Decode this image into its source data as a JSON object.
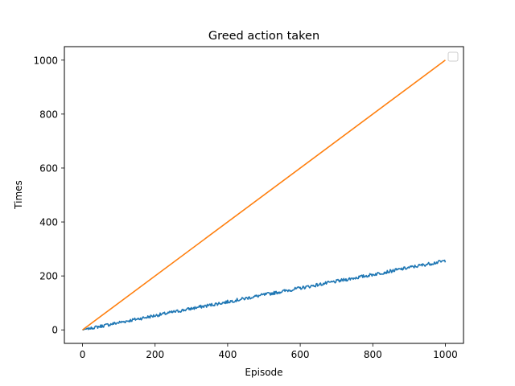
{
  "chart_data": {
    "type": "line",
    "title": "Greed action taken",
    "xlabel": "Episode",
    "ylabel": "Times",
    "xlim": [
      -50,
      1050
    ],
    "ylim": [
      -50,
      1050
    ],
    "xticks": [
      0,
      200,
      400,
      600,
      800,
      1000
    ],
    "yticks": [
      0,
      200,
      400,
      600,
      800,
      1000
    ],
    "grid": false,
    "legend": {
      "placement": "top-right",
      "entries": []
    },
    "series": [
      {
        "color": "#1f77b4",
        "style": "noisy",
        "x": [
          0,
          100,
          200,
          300,
          400,
          500,
          600,
          700,
          800,
          900,
          1000
        ],
        "values": [
          0,
          27,
          53,
          79,
          104,
          130,
          155,
          180,
          205,
          231,
          256
        ]
      },
      {
        "color": "#ff7f0e",
        "style": "smooth",
        "x": [
          0,
          1000
        ],
        "values": [
          0,
          1000
        ]
      }
    ]
  }
}
